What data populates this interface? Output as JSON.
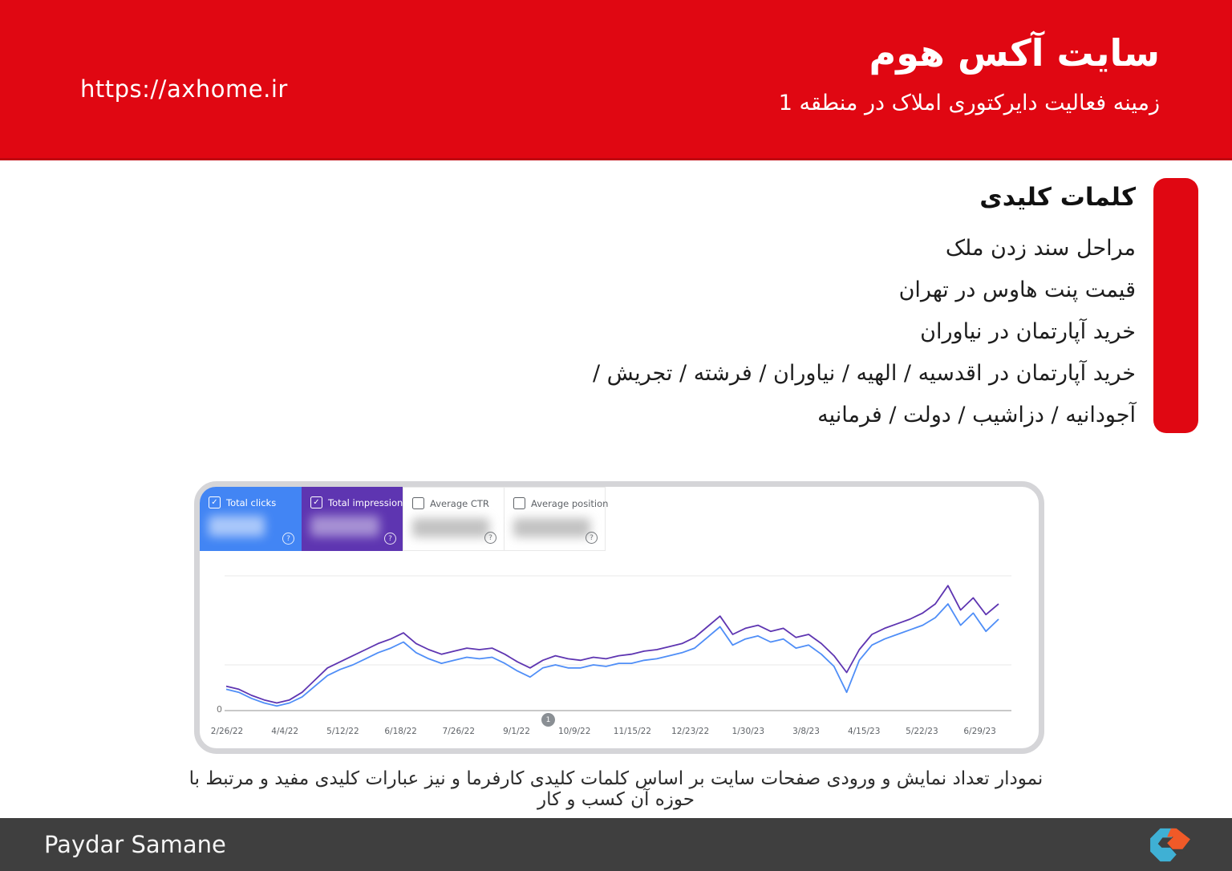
{
  "header": {
    "url": "https://axhome.ir",
    "title": "سایت آکس هوم",
    "subtitle": "زمینه فعالیت دایرکتوری املاک در منطقه 1"
  },
  "keywords": {
    "heading": "کلمات کلیدی",
    "items": [
      "مراحل سند زدن ملک",
      "قیمت پنت هاوس در تهران",
      "خرید آپارتمان در نیاوران",
      "خرید آپارتمان در اقدسیه / الهیه / نیاوران / فرشته / تجریش /",
      "آجودانیه / دزاشیب / دولت / فرمانیه"
    ]
  },
  "search_console": {
    "tiles": [
      {
        "label": "Total clicks",
        "checked": true,
        "bg": "#4285f4",
        "value_blurred": true
      },
      {
        "label": "Total impressions",
        "checked": true,
        "bg": "#5e35b1",
        "value_blurred": true
      },
      {
        "label": "Average CTR",
        "checked": false,
        "bg": "#ffffff",
        "value_blurred": true
      },
      {
        "label": "Average position",
        "checked": false,
        "bg": "#ffffff",
        "value_blurred": true
      }
    ],
    "checkbox_glyph": "✓",
    "help_glyph": "?",
    "annotation_marker": "1",
    "y_zero_label": "0"
  },
  "chart_data": {
    "type": "line",
    "title": "",
    "xlabel": "",
    "ylabel": "",
    "note": "metric values blurred in source screenshot; series values estimated in relative units",
    "x_tick_labels": [
      "2/26/22",
      "4/4/22",
      "5/12/22",
      "6/18/22",
      "7/26/22",
      "9/1/22",
      "10/9/22",
      "11/15/22",
      "12/23/22",
      "1/30/23",
      "3/8/23",
      "4/15/23",
      "5/22/23",
      "6/29/23"
    ],
    "ylim": [
      0,
      100
    ],
    "grid": "horizontal-faint",
    "legend_position": "none",
    "series": [
      {
        "name": "Total impressions",
        "color": "#5e35b1",
        "values": [
          16,
          14,
          10,
          7,
          5,
          7,
          12,
          20,
          28,
          32,
          36,
          40,
          44,
          47,
          51,
          44,
          40,
          37,
          39,
          41,
          40,
          41,
          37,
          32,
          28,
          33,
          36,
          34,
          33,
          35,
          34,
          36,
          37,
          39,
          40,
          42,
          44,
          48,
          55,
          62,
          50,
          54,
          56,
          52,
          54,
          48,
          50,
          44,
          36,
          25,
          40,
          50,
          54,
          57,
          60,
          64,
          70,
          82,
          66,
          74,
          63,
          70
        ]
      },
      {
        "name": "Total clicks",
        "color": "#4f8ef7",
        "values": [
          14,
          12,
          8,
          5,
          3,
          5,
          9,
          16,
          23,
          27,
          30,
          34,
          38,
          41,
          45,
          38,
          34,
          31,
          33,
          35,
          34,
          35,
          31,
          26,
          22,
          28,
          30,
          28,
          28,
          30,
          29,
          31,
          31,
          33,
          34,
          36,
          38,
          41,
          48,
          55,
          43,
          47,
          49,
          45,
          47,
          41,
          43,
          37,
          29,
          12,
          33,
          43,
          47,
          50,
          53,
          56,
          61,
          70,
          56,
          64,
          52,
          60
        ]
      }
    ]
  },
  "caption": "نمودار تعداد نمایش و ورودی صفحات سایت بر اساس کلمات کلیدی کارفرما و نیز عبارات کلیدی مفید و مرتبط با حوزه آن کسب و کار",
  "footer": {
    "company": "Paydar Samane",
    "logo_colors": {
      "teal": "#3fb0d4",
      "orange": "#f05a28"
    }
  },
  "colors": {
    "brand_red": "#e00712",
    "footer_bg": "#3f3f3f",
    "tile_blue": "#4285f4",
    "tile_purple": "#5e35b1",
    "card_border": "#d5d5d8"
  }
}
